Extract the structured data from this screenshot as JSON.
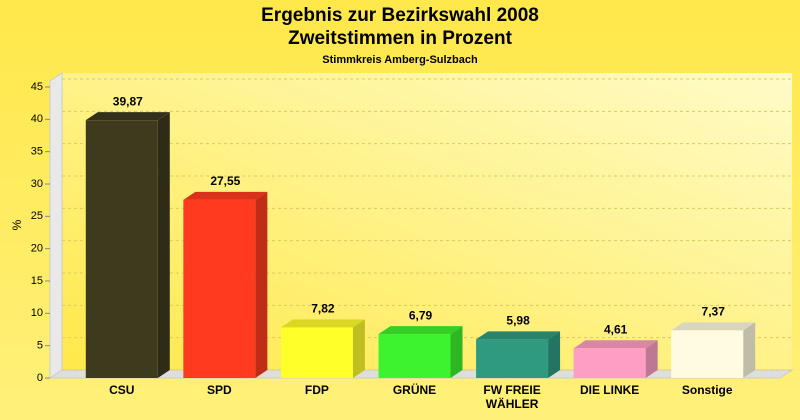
{
  "chart_data": {
    "type": "bar",
    "title": [
      "Ergebnis zur Bezirkswahl 2008",
      "Zweitstimmen in Prozent"
    ],
    "subtitle": "Stimmkreis Amberg-Sulzbach",
    "y_label": "%",
    "categories": [
      "CSU",
      "SPD",
      "FDP",
      "GRÜNE",
      "FW FREIE WÄHLER",
      "DIE LINKE",
      "Sonstige"
    ],
    "values": [
      39.87,
      27.55,
      7.82,
      6.79,
      5.98,
      4.61,
      7.37
    ],
    "value_labels": [
      "39,87",
      "27,55",
      "7,82",
      "6,79",
      "5,98",
      "4,61",
      "7,37"
    ],
    "colors": [
      "#3d3a1e",
      "#ff3a1f",
      "#ffff2a",
      "#3df22e",
      "#2f9a80",
      "#ff9ec4",
      "#fffbe0"
    ],
    "ylim": [
      0,
      45
    ],
    "yticks": [
      0,
      5,
      10,
      15,
      20,
      25,
      30,
      35,
      40,
      45
    ],
    "grid": true
  }
}
